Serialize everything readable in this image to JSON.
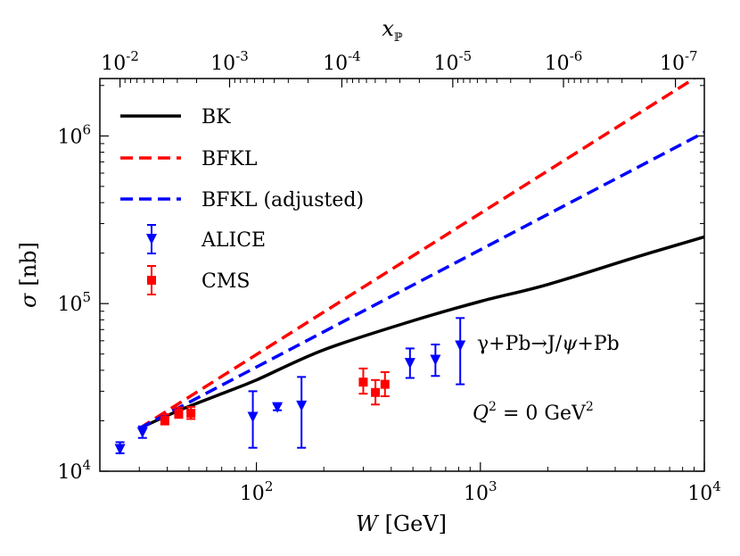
{
  "chart_data": {
    "type": "line",
    "xlabel": "W [GeV]",
    "ylabel": "σ [nb]",
    "top_xlabel": "x_P",
    "xscale": "log",
    "yscale": "log",
    "xlim": [
      20,
      10000
    ],
    "ylim": [
      10000,
      2200000
    ],
    "x_ticks": [
      {
        "value": 100,
        "label": "10^2"
      },
      {
        "value": 1000,
        "label": "10^3"
      },
      {
        "value": 10000,
        "label": "10^4"
      }
    ],
    "y_ticks": [
      {
        "value": 10000,
        "label": "10^4"
      },
      {
        "value": 100000,
        "label": "10^5"
      },
      {
        "value": 1000000,
        "label": "10^6"
      }
    ],
    "top_ticks": [
      {
        "label": "10^-2",
        "w": 24.6
      },
      {
        "label": "10^-3",
        "w": 75.9
      },
      {
        "label": "10^-4",
        "w": 240.7
      },
      {
        "label": "10^-5",
        "w": 753
      },
      {
        "label": "10^-6",
        "w": 2350
      },
      {
        "label": "10^-7",
        "w": 7430
      }
    ],
    "legend": [
      {
        "label": "BK",
        "style": "solid",
        "color": "#000000"
      },
      {
        "label": "BFKL",
        "style": "dashed",
        "color": "#ff0000"
      },
      {
        "label": "BFKL (adjusted)",
        "style": "dashed",
        "color": "#0000ff"
      },
      {
        "label": "ALICE",
        "style": "marker-triangle",
        "color": "#0000ff"
      },
      {
        "label": "CMS",
        "style": "marker-square",
        "color": "#ff0000"
      }
    ],
    "series": [
      {
        "name": "BK",
        "color": "#000000",
        "dash": false,
        "points": [
          [
            30,
            18000
          ],
          [
            45,
            23000
          ],
          [
            70,
            29000
          ],
          [
            100,
            35000
          ],
          [
            200,
            53000
          ],
          [
            500,
            79000
          ],
          [
            1000,
            103000
          ],
          [
            2000,
            130000
          ],
          [
            5000,
            190000
          ],
          [
            10000,
            250000
          ]
        ]
      },
      {
        "name": "BFKL",
        "color": "#ff0000",
        "dash": true,
        "points": [
          [
            30,
            18000
          ],
          [
            9000,
            2200000
          ]
        ]
      },
      {
        "name": "BFKL (adjusted)",
        "color": "#0000ff",
        "dash": true,
        "points": [
          [
            30,
            18000
          ],
          [
            10000,
            1050000
          ]
        ]
      }
    ],
    "alice": [
      {
        "w": 24.6,
        "y": 13500,
        "lo": 12800,
        "hi": 14900
      },
      {
        "w": 31.0,
        "y": 17000,
        "lo": 15800,
        "hi": 18500
      },
      {
        "w": 96.4,
        "y": 21000,
        "lo": 13800,
        "hi": 30000
      },
      {
        "w": 124.0,
        "y": 24000,
        "lo": 23100,
        "hi": 25100
      },
      {
        "w": 159.0,
        "y": 24500,
        "lo": 13800,
        "hi": 36500
      },
      {
        "w": 485.0,
        "y": 44000,
        "lo": 36000,
        "hi": 54000
      },
      {
        "w": 630.0,
        "y": 46000,
        "lo": 37000,
        "hi": 57000
      },
      {
        "w": 813.0,
        "y": 56000,
        "lo": 33000,
        "hi": 82000
      }
    ],
    "cms": [
      {
        "w": 39.0,
        "y": 20200,
        "lo": 19000,
        "hi": 21900
      },
      {
        "w": 45.0,
        "y": 22200,
        "lo": 20800,
        "hi": 24000
      },
      {
        "w": 51.0,
        "y": 22200,
        "lo": 20500,
        "hi": 24200
      },
      {
        "w": 300.0,
        "y": 34000,
        "lo": 29000,
        "hi": 41000
      },
      {
        "w": 340.0,
        "y": 29500,
        "lo": 25000,
        "hi": 35000
      },
      {
        "w": 375.0,
        "y": 33000,
        "lo": 28000,
        "hi": 39000
      }
    ],
    "annotations": [
      "γ+Pb→J/ψ+Pb",
      "Q^2 = 0 GeV^2"
    ]
  },
  "text": {
    "xlabel_var": "W",
    "xlabel_unit": "[GeV]",
    "ylabel_var": "σ",
    "ylabel_unit": "[nb]",
    "top_var": "x",
    "top_sub": "ℙ",
    "annot_reaction_1": "γ+Pb→J/",
    "annot_reaction_2": "ψ",
    "annot_reaction_3": "+Pb",
    "annot_q_var": "Q",
    "annot_q_sup": "2",
    "annot_q_mid": " = 0 GeV",
    "annot_q_sup2": "2"
  }
}
